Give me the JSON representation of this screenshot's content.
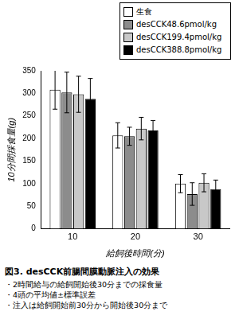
{
  "chart_data": {
    "type": "bar",
    "title": "図3. desCCK前腸間膜動脈注入の効果",
    "annotations": [
      "・2時間給与の給飼開始後30分までの採食量",
      "・4頭の平均値±標準誤差",
      "・注入は給飼開始前30分から開始後30分まで"
    ],
    "x_label": "給飼後時間(分)",
    "y_label": "10分間採食量(g)",
    "categories": [
      "10",
      "20",
      "30"
    ],
    "series": [
      {
        "name": "生食",
        "color": "#ffffff",
        "values": [
          308,
          207,
          100
        ],
        "errors": [
          43,
          28,
          20
        ]
      },
      {
        "name": "desCCK48.6pmol/kg",
        "color": "#8c8c8c",
        "values": [
          302,
          205,
          77
        ],
        "errors": [
          45,
          20,
          25
        ]
      },
      {
        "name": "desCCK199.4pmol/kg",
        "color": "#c8c8c8",
        "values": [
          298,
          222,
          102
        ],
        "errors": [
          40,
          25,
          20
        ]
      },
      {
        "name": "desCCK388.8pmol/kg",
        "color": "#000000",
        "values": [
          288,
          218,
          88
        ],
        "errors": [
          45,
          22,
          20
        ]
      }
    ],
    "ylim": [
      0,
      350
    ],
    "yticks": [
      0,
      50,
      100,
      150,
      200,
      250,
      300,
      350
    ],
    "legend": "upper right",
    "grid": false
  }
}
